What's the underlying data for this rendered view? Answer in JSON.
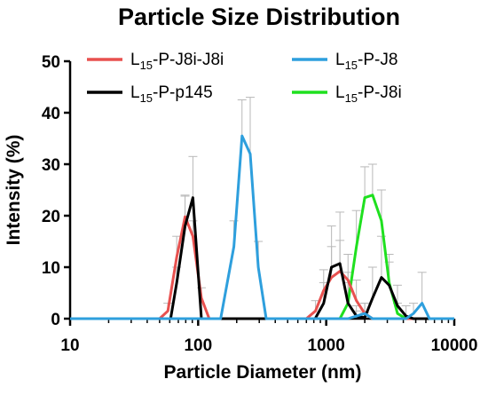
{
  "chart_data": {
    "type": "line",
    "title": "Particle Size Distribution",
    "xlabel": "Particle Diameter (nm)",
    "ylabel": "Intensity (%)",
    "x_scale": "log",
    "xlim": [
      10,
      10000
    ],
    "ylim": [
      0,
      50
    ],
    "x_ticks": [
      10,
      100,
      1000,
      10000
    ],
    "x_tick_labels": [
      "10",
      "100",
      "1000",
      "10000"
    ],
    "y_ticks": [
      0,
      10,
      20,
      30,
      40,
      50
    ],
    "y_tick_labels": [
      "0",
      "10",
      "20",
      "30",
      "40",
      "50"
    ],
    "grid": false,
    "legend_position": "top",
    "series": [
      {
        "name_main": "L",
        "name_sub": "15",
        "name_rest": "-P-J8i-J8i",
        "color": "#e8514f",
        "x": [
          10,
          50,
          58,
          68,
          79,
          91,
          106,
          122,
          700,
          825,
          955,
          1100,
          1280,
          1480,
          1720,
          2000,
          2300,
          10000
        ],
        "y": [
          0,
          0,
          1.5,
          12,
          19.8,
          16,
          4,
          0,
          0,
          1.5,
          5.5,
          8,
          9.2,
          7.5,
          3.5,
          1,
          0,
          0
        ],
        "err": [
          0,
          0,
          1.5,
          4,
          4,
          3,
          2,
          0,
          0,
          2,
          4,
          6,
          6,
          5,
          4,
          2,
          0,
          0
        ]
      },
      {
        "name_main": "L",
        "name_sub": "15",
        "name_rest": "-P-p145",
        "color": "#000000",
        "x": [
          10,
          61,
          68,
          79,
          91,
          106,
          820,
          955,
          1100,
          1280,
          1480,
          1720,
          2000,
          2300,
          2700,
          3100,
          3600,
          4200,
          4800,
          10000
        ],
        "y": [
          0,
          0,
          7,
          18,
          23.5,
          0,
          0,
          3,
          10,
          10.7,
          3,
          0.5,
          0.2,
          4,
          8,
          6.5,
          2.5,
          0.5,
          0,
          0
        ],
        "err": [
          0,
          0,
          3,
          6,
          8,
          0,
          0,
          4,
          8,
          10,
          6,
          2,
          1,
          6,
          8,
          6,
          4,
          2,
          0,
          0
        ]
      },
      {
        "name_main": "L",
        "name_sub": "15",
        "name_rest": "-P-J8",
        "color": "#2e9fdd",
        "x": [
          10,
          150,
          190,
          220,
          255,
          295,
          340,
          1480,
          1720,
          2000,
          2300,
          4200,
          4800,
          5600,
          6400,
          10000
        ],
        "y": [
          0,
          0,
          14,
          35.5,
          32,
          10,
          0,
          0,
          0.5,
          1,
          0,
          0,
          1,
          3,
          0,
          0
        ],
        "err": [
          0,
          0,
          5,
          7,
          11,
          5,
          0,
          0,
          1,
          2,
          0,
          0,
          2,
          6,
          0,
          0
        ],
        "_note": ""
      },
      {
        "name_main": "L",
        "name_sub": "15",
        "name_rest": "-P-J8i",
        "color": "#1fe01f",
        "x": [
          10,
          1280,
          1480,
          1720,
          2000,
          2300,
          2700,
          3100,
          3600,
          4200,
          10000
        ],
        "y": [
          0,
          0,
          3,
          14,
          23.5,
          24,
          19,
          7,
          1,
          0,
          0
        ],
        "err": [
          0,
          0,
          4,
          7,
          6,
          6,
          6,
          4,
          2,
          0,
          0
        ]
      }
    ]
  }
}
